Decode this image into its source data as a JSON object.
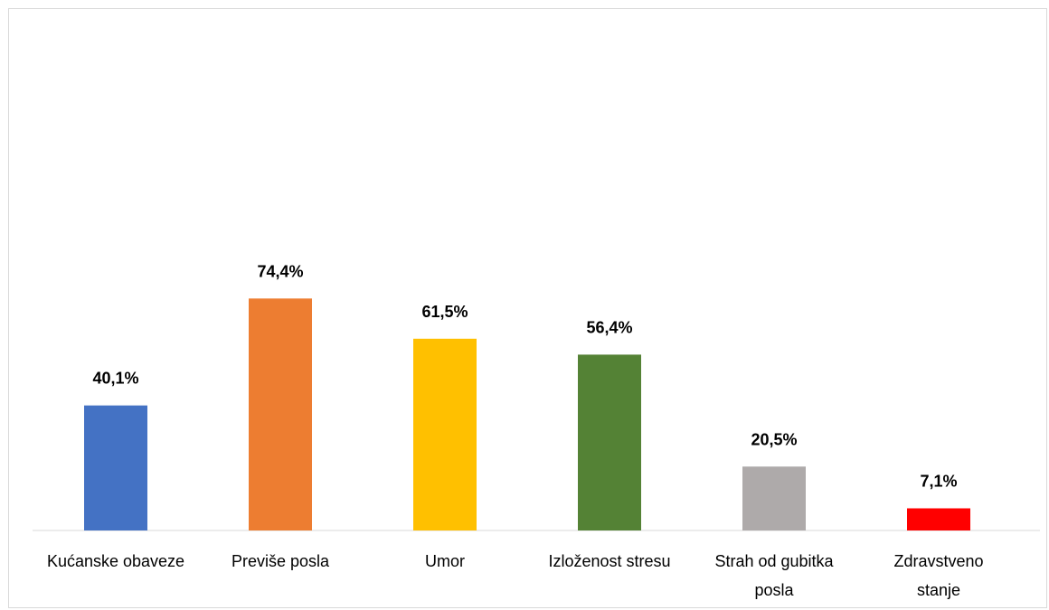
{
  "chart_data": {
    "type": "bar",
    "categories": [
      [
        "Kućanske obaveze"
      ],
      [
        "Previše posla"
      ],
      [
        "Umor"
      ],
      [
        "Izloženost stresu"
      ],
      [
        "Strah od gubitka",
        "posla"
      ],
      [
        "Zdravstveno",
        "stanje"
      ]
    ],
    "values": [
      40.1,
      74.4,
      61.5,
      56.4,
      20.5,
      7.1
    ],
    "value_labels": [
      "40,1%",
      "74,4%",
      "61,5%",
      "56,4%",
      "20,5%",
      "7,1%"
    ],
    "colors": [
      "#4472c4",
      "#ed7d31",
      "#ffc000",
      "#548235",
      "#aeaaaa",
      "#ff0000"
    ],
    "ylim": [
      0,
      80
    ],
    "grid": false,
    "legend": "none",
    "title": "",
    "xlabel": "",
    "ylabel": ""
  }
}
